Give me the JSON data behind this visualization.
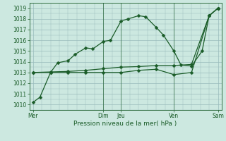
{
  "xlabel": "Pression niveau de la mer( hPa )",
  "bg_color": "#cce8e0",
  "grid_color": "#99bbbb",
  "line_color": "#1a5c28",
  "ylim": [
    1009.5,
    1019.5
  ],
  "yticks": [
    1010,
    1011,
    1012,
    1013,
    1014,
    1015,
    1016,
    1017,
    1018,
    1019
  ],
  "xlim": [
    -0.1,
    5.35
  ],
  "day_ticks": [
    0,
    2.0,
    2.5,
    4.0,
    5.25
  ],
  "day_labels": [
    "Mer",
    "Dim",
    "Jeu",
    "Ven",
    "Sam"
  ],
  "vlines": [
    2.0,
    2.5,
    4.0
  ],
  "line1_x": [
    0.0,
    0.2,
    0.5,
    0.7,
    1.0,
    1.2,
    1.5,
    1.7,
    2.0,
    2.2,
    2.5,
    2.7,
    3.0,
    3.2,
    3.5,
    3.7,
    4.0,
    4.2,
    4.5,
    4.8,
    5.0,
    5.25
  ],
  "line1_y": [
    1010.2,
    1010.7,
    1013.0,
    1013.9,
    1014.1,
    1014.7,
    1015.3,
    1015.2,
    1015.9,
    1016.0,
    1017.8,
    1018.0,
    1018.3,
    1018.2,
    1017.2,
    1016.5,
    1015.0,
    1013.7,
    1013.6,
    1015.0,
    1018.3,
    1019.0
  ],
  "line2_x": [
    0.0,
    0.5,
    1.0,
    1.5,
    2.0,
    2.5,
    3.0,
    3.5,
    4.0,
    4.5,
    5.0,
    5.25
  ],
  "line2_y": [
    1013.0,
    1013.05,
    1013.1,
    1013.2,
    1013.35,
    1013.5,
    1013.55,
    1013.65,
    1013.65,
    1013.75,
    1018.3,
    1019.0
  ],
  "line3_x": [
    0.0,
    0.5,
    1.0,
    1.5,
    2.0,
    2.5,
    3.0,
    3.5,
    4.0,
    4.5,
    5.0,
    5.25
  ],
  "line3_y": [
    1013.0,
    1013.0,
    1013.0,
    1013.0,
    1013.0,
    1013.0,
    1013.2,
    1013.3,
    1012.8,
    1013.0,
    1018.3,
    1019.0
  ],
  "marker_size": 2.5,
  "linewidth": 0.9
}
